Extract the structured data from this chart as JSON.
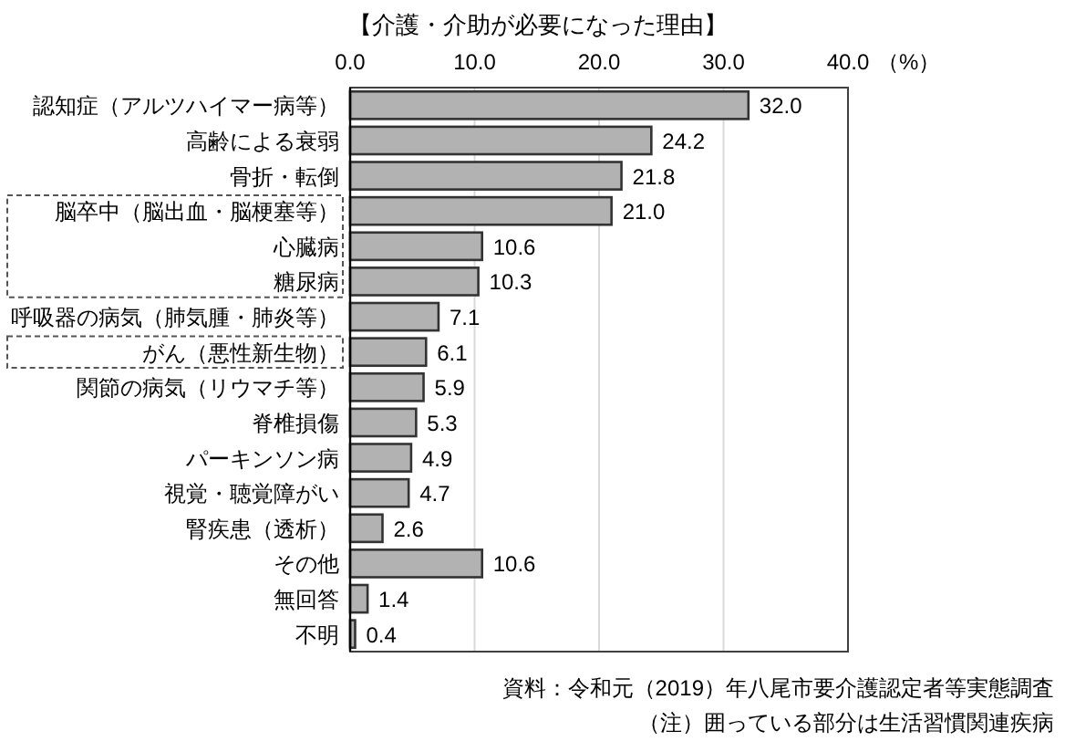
{
  "chart_data": {
    "type": "bar",
    "orientation": "horizontal",
    "title": "【介護・介助が必要になった理由】",
    "xlabel": "（%）",
    "categories": [
      "認知症（アルツハイマー病等）",
      "高齢による衰弱",
      "骨折・転倒",
      "脳卒中（脳出血・脳梗塞等）",
      "心臓病",
      "糖尿病",
      "呼吸器の病気（肺気腫・肺炎等）",
      "がん（悪性新生物）",
      "関節の病気（リウマチ等）",
      "脊椎損傷",
      "パーキンソン病",
      "視覚・聴覚障がい",
      "腎疾患（透析）",
      "その他",
      "無回答",
      "不明"
    ],
    "values": [
      32.0,
      24.2,
      21.8,
      21.0,
      10.6,
      10.3,
      7.1,
      6.1,
      5.9,
      5.3,
      4.9,
      4.7,
      2.6,
      10.6,
      1.4,
      0.4
    ],
    "value_labels": [
      "32.0",
      "24.2",
      "21.8",
      "21.0",
      "10.6",
      "10.3",
      "7.1",
      "6.1",
      "5.9",
      "5.3",
      "4.9",
      "4.7",
      "2.6",
      "10.6",
      "1.4",
      "0.4"
    ],
    "color": "#b2b2b2",
    "xlim": [
      0,
      40
    ],
    "xticks": [
      {
        "value": 0,
        "label": "0.0"
      },
      {
        "value": 10,
        "label": "10.0"
      },
      {
        "value": 20,
        "label": "20.0"
      },
      {
        "value": 30,
        "label": "30.0"
      },
      {
        "value": 40,
        "label": "40.0"
      }
    ],
    "grid": "x",
    "annotations": [
      "資料：令和元（2019）年八尾市要介護認定者等実態調査",
      "（注）囲っている部分は生活習慣関連疾病"
    ]
  }
}
